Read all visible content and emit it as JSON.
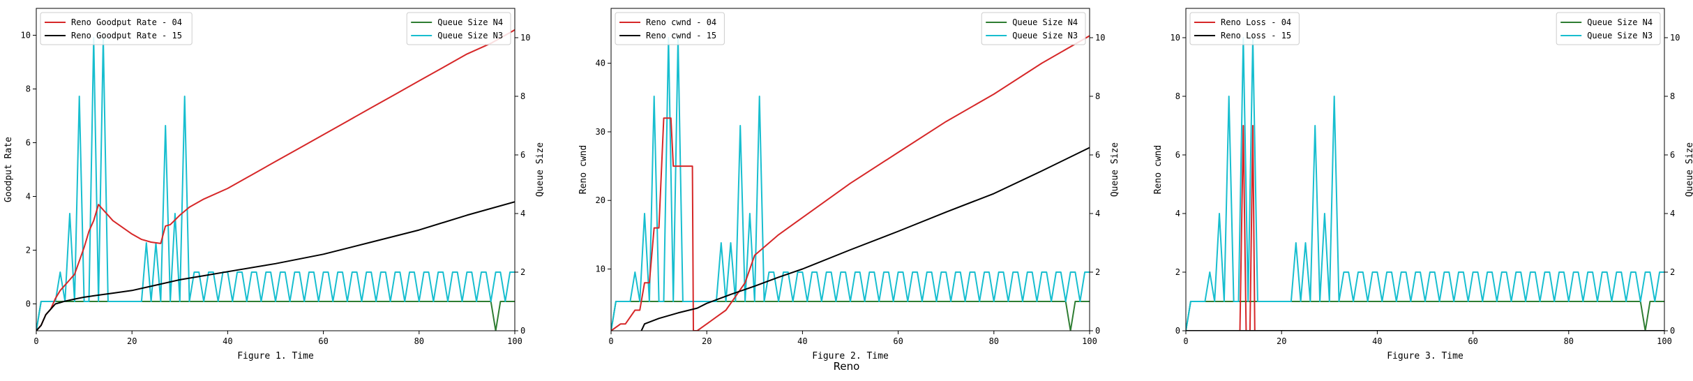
{
  "figure": {
    "suptitle": "Reno"
  },
  "colors": {
    "c04": "#d62728",
    "c15": "#000000",
    "qn4": "#2e7d32",
    "qn3": "#17becf"
  },
  "chart_data": [
    {
      "type": "line",
      "title": "",
      "xlabel": "Figure 1. Time",
      "ylabel": "Goodput Rate",
      "y2label": "Queue Size",
      "xlim": [
        0,
        100
      ],
      "ylim": [
        -1,
        11
      ],
      "y2lim": [
        0,
        11
      ],
      "xticks": [
        0,
        20,
        40,
        60,
        80,
        100
      ],
      "yticks": [
        0,
        2,
        4,
        6,
        8,
        10
      ],
      "y2ticks": [
        0,
        2,
        4,
        6,
        8,
        10
      ],
      "legend_left": [
        "Reno Goodput Rate - 04",
        "Reno Goodput Rate - 15"
      ],
      "legend_right": [
        "Queue Size N4",
        "Queue Size N3"
      ],
      "series_left": [
        {
          "name": "Reno Goodput Rate - 04",
          "color": "#d62728",
          "x": [
            0,
            1,
            2,
            3,
            4,
            5,
            6,
            7,
            8,
            9,
            10,
            11,
            12,
            13,
            14,
            15,
            16,
            18,
            20,
            22,
            24,
            26,
            27,
            28,
            30,
            32,
            35,
            40,
            45,
            50,
            55,
            60,
            65,
            70,
            75,
            80,
            85,
            90,
            95,
            100
          ],
          "y": [
            -1,
            -0.8,
            -0.4,
            -0.2,
            0.2,
            0.5,
            0.7,
            0.9,
            1.1,
            1.6,
            2.1,
            2.7,
            3.1,
            3.7,
            3.5,
            3.3,
            3.1,
            2.85,
            2.6,
            2.4,
            2.3,
            2.25,
            2.9,
            2.95,
            3.3,
            3.6,
            3.9,
            4.3,
            4.8,
            5.3,
            5.8,
            6.3,
            6.8,
            7.3,
            7.8,
            8.3,
            8.8,
            9.3,
            9.7,
            10.2
          ]
        },
        {
          "name": "Reno Goodput Rate - 15",
          "color": "#000000",
          "x": [
            0,
            1,
            2,
            3,
            4,
            5,
            6,
            8,
            10,
            12,
            14,
            16,
            20,
            25,
            30,
            35,
            40,
            50,
            60,
            70,
            80,
            90,
            100
          ],
          "y": [
            -1,
            -0.8,
            -0.4,
            -0.2,
            0.0,
            0.05,
            0.1,
            0.18,
            0.25,
            0.3,
            0.35,
            0.4,
            0.5,
            0.7,
            0.9,
            1.05,
            1.2,
            1.5,
            1.85,
            2.3,
            2.75,
            3.3,
            3.8
          ]
        }
      ],
      "series_right": [
        {
          "name": "Queue Size N4",
          "color": "#2e7d32",
          "x": [
            0,
            1,
            95,
            96,
            97,
            100
          ],
          "y": [
            0,
            1,
            1,
            0,
            1,
            1
          ]
        },
        {
          "name": "Queue Size N3",
          "color": "#17becf",
          "x": [
            0,
            1,
            4,
            5,
            6,
            7,
            8,
            9,
            10,
            11,
            12,
            13,
            14,
            15,
            16,
            22,
            23,
            24,
            25,
            26,
            27,
            28,
            29,
            30,
            31,
            32,
            33,
            34,
            35,
            36,
            37,
            38,
            39,
            40,
            41,
            42,
            43,
            44,
            45,
            46,
            47,
            48,
            49,
            50,
            51,
            52,
            53,
            54,
            55,
            56,
            57,
            58,
            59,
            60,
            61,
            62,
            63,
            64,
            65,
            66,
            67,
            68,
            69,
            70,
            71,
            72,
            73,
            74,
            75,
            76,
            77,
            78,
            79,
            80,
            81,
            82,
            83,
            84,
            85,
            86,
            87,
            88,
            89,
            90,
            91,
            92,
            93,
            94,
            95,
            96,
            97,
            98,
            99,
            100
          ],
          "y": [
            0,
            1,
            1,
            2,
            1,
            4,
            1,
            8,
            1,
            1,
            10,
            1,
            10,
            1,
            1,
            1,
            3,
            1,
            3,
            1,
            7,
            1,
            4,
            1,
            8,
            1,
            2,
            2,
            1,
            2,
            2,
            1,
            2,
            2,
            1,
            2,
            2,
            1,
            2,
            2,
            1,
            2,
            2,
            1,
            2,
            2,
            1,
            2,
            2,
            1,
            2,
            2,
            1,
            2,
            2,
            1,
            2,
            2,
            1,
            2,
            2,
            1,
            2,
            2,
            1,
            2,
            2,
            1,
            2,
            2,
            1,
            2,
            2,
            1,
            2,
            2,
            1,
            2,
            2,
            1,
            2,
            2,
            1,
            2,
            2,
            1,
            2,
            2,
            1,
            2,
            2,
            1,
            2,
            2
          ]
        }
      ]
    },
    {
      "type": "line",
      "title": "",
      "xlabel": "Figure 2. Time",
      "ylabel": "Reno cwnd",
      "y2label": "Queue Size",
      "xlim": [
        0,
        100
      ],
      "ylim": [
        1,
        48
      ],
      "y2lim": [
        0,
        11
      ],
      "xticks": [
        0,
        20,
        40,
        60,
        80,
        100
      ],
      "yticks": [
        10,
        20,
        30,
        40
      ],
      "y2ticks": [
        0,
        2,
        4,
        6,
        8,
        10
      ],
      "legend_left": [
        "Reno cwnd - 04",
        "Reno cwnd - 15"
      ],
      "legend_right": [
        "Queue Size N4",
        "Queue Size N3"
      ],
      "series_left": [
        {
          "name": "Reno cwnd - 04",
          "color": "#d62728",
          "x": [
            0,
            2,
            3,
            5,
            6,
            7,
            8,
            9,
            10,
            11,
            11.5,
            12.5,
            13,
            14,
            16,
            17,
            17.2,
            18,
            20,
            22,
            24,
            26,
            28,
            30,
            35,
            40,
            50,
            60,
            70,
            80,
            90,
            100
          ],
          "y": [
            1,
            2,
            2,
            4,
            4,
            8,
            8,
            16,
            16,
            32,
            32,
            32,
            25,
            25,
            25,
            25,
            1,
            1,
            2,
            3,
            4,
            6,
            8,
            12,
            15,
            17.5,
            22.5,
            27,
            31.5,
            35.5,
            40,
            44
          ]
        },
        {
          "name": "Reno cwnd - 15",
          "color": "#000000",
          "x": [
            0,
            6,
            7,
            10,
            14,
            18,
            20,
            25,
            30,
            35,
            40,
            50,
            60,
            70,
            80,
            90,
            100
          ],
          "y": [
            0.5,
            0.5,
            2,
            2.8,
            3.6,
            4.3,
            5,
            6.3,
            7.5,
            8.8,
            10,
            12.8,
            15.5,
            18.3,
            21,
            24.3,
            27.7
          ]
        }
      ],
      "series_right": [
        {
          "name": "Queue Size N4",
          "color": "#2e7d32",
          "x": [
            0,
            1,
            95,
            96,
            97,
            100
          ],
          "y": [
            0,
            1,
            1,
            0,
            1,
            1
          ]
        },
        {
          "name": "Queue Size N3",
          "color": "#17becf",
          "x": [
            0,
            1,
            4,
            5,
            6,
            7,
            8,
            9,
            10,
            11,
            12,
            13,
            14,
            15,
            16,
            22,
            23,
            24,
            25,
            26,
            27,
            28,
            29,
            30,
            31,
            32,
            33,
            34,
            35,
            36,
            37,
            38,
            39,
            40,
            41,
            42,
            43,
            44,
            45,
            46,
            47,
            48,
            49,
            50,
            51,
            52,
            53,
            54,
            55,
            56,
            57,
            58,
            59,
            60,
            61,
            62,
            63,
            64,
            65,
            66,
            67,
            68,
            69,
            70,
            71,
            72,
            73,
            74,
            75,
            76,
            77,
            78,
            79,
            80,
            81,
            82,
            83,
            84,
            85,
            86,
            87,
            88,
            89,
            90,
            91,
            92,
            93,
            94,
            95,
            96,
            97,
            98,
            99,
            100
          ],
          "y": [
            0,
            1,
            1,
            2,
            1,
            4,
            1,
            8,
            1,
            1,
            10,
            1,
            10,
            1,
            1,
            1,
            3,
            1,
            3,
            1,
            7,
            1,
            4,
            1,
            8,
            1,
            2,
            2,
            1,
            2,
            2,
            1,
            2,
            2,
            1,
            2,
            2,
            1,
            2,
            2,
            1,
            2,
            2,
            1,
            2,
            2,
            1,
            2,
            2,
            1,
            2,
            2,
            1,
            2,
            2,
            1,
            2,
            2,
            1,
            2,
            2,
            1,
            2,
            2,
            1,
            2,
            2,
            1,
            2,
            2,
            1,
            2,
            2,
            1,
            2,
            2,
            1,
            2,
            2,
            1,
            2,
            2,
            1,
            2,
            2,
            1,
            2,
            2,
            1,
            2,
            2,
            1,
            2,
            2
          ]
        }
      ]
    },
    {
      "type": "line",
      "title": "",
      "xlabel": "Figure 3. Time",
      "ylabel": "Reno cwnd",
      "y2label": "Queue Size",
      "xlim": [
        0,
        100
      ],
      "ylim": [
        0,
        11
      ],
      "y2lim": [
        0,
        11
      ],
      "xticks": [
        0,
        20,
        40,
        60,
        80,
        100
      ],
      "yticks": [
        0,
        2,
        4,
        6,
        8,
        10
      ],
      "y2ticks": [
        0,
        2,
        4,
        6,
        8,
        10
      ],
      "legend_left": [
        "Reno Loss - 04",
        "Reno Loss - 15"
      ],
      "legend_right": [
        "Queue Size N4",
        "Queue Size N3"
      ],
      "series_left": [
        {
          "name": "Reno Loss - 04",
          "color": "#d62728",
          "x": [
            0,
            11,
            11.3,
            12,
            12.6,
            13,
            13.4,
            14,
            14.4,
            15,
            100
          ],
          "y": [
            0,
            0,
            0,
            7,
            0,
            0,
            0,
            7,
            0,
            0,
            0
          ]
        },
        {
          "name": "Reno Loss - 15",
          "color": "#000000",
          "x": [
            0,
            100
          ],
          "y": [
            0,
            0
          ]
        }
      ],
      "series_right": [
        {
          "name": "Queue Size N4",
          "color": "#2e7d32",
          "x": [
            0,
            1,
            95,
            96,
            97,
            100
          ],
          "y": [
            0,
            1,
            1,
            0,
            1,
            1
          ]
        },
        {
          "name": "Queue Size N3",
          "color": "#17becf",
          "x": [
            0,
            1,
            4,
            5,
            6,
            7,
            8,
            9,
            10,
            11,
            12,
            13,
            14,
            15,
            16,
            22,
            23,
            24,
            25,
            26,
            27,
            28,
            29,
            30,
            31,
            32,
            33,
            34,
            35,
            36,
            37,
            38,
            39,
            40,
            41,
            42,
            43,
            44,
            45,
            46,
            47,
            48,
            49,
            50,
            51,
            52,
            53,
            54,
            55,
            56,
            57,
            58,
            59,
            60,
            61,
            62,
            63,
            64,
            65,
            66,
            67,
            68,
            69,
            70,
            71,
            72,
            73,
            74,
            75,
            76,
            77,
            78,
            79,
            80,
            81,
            82,
            83,
            84,
            85,
            86,
            87,
            88,
            89,
            90,
            91,
            92,
            93,
            94,
            95,
            96,
            97,
            98,
            99,
            100
          ],
          "y": [
            0,
            1,
            1,
            2,
            1,
            4,
            1,
            8,
            1,
            1,
            10,
            1,
            10,
            1,
            1,
            1,
            3,
            1,
            3,
            1,
            7,
            1,
            4,
            1,
            8,
            1,
            2,
            2,
            1,
            2,
            2,
            1,
            2,
            2,
            1,
            2,
            2,
            1,
            2,
            2,
            1,
            2,
            2,
            1,
            2,
            2,
            1,
            2,
            2,
            1,
            2,
            2,
            1,
            2,
            2,
            1,
            2,
            2,
            1,
            2,
            2,
            1,
            2,
            2,
            1,
            2,
            2,
            1,
            2,
            2,
            1,
            2,
            2,
            1,
            2,
            2,
            1,
            2,
            2,
            1,
            2,
            2,
            1,
            2,
            2,
            1,
            2,
            2,
            1,
            2,
            2,
            1,
            2,
            2
          ]
        }
      ]
    }
  ]
}
